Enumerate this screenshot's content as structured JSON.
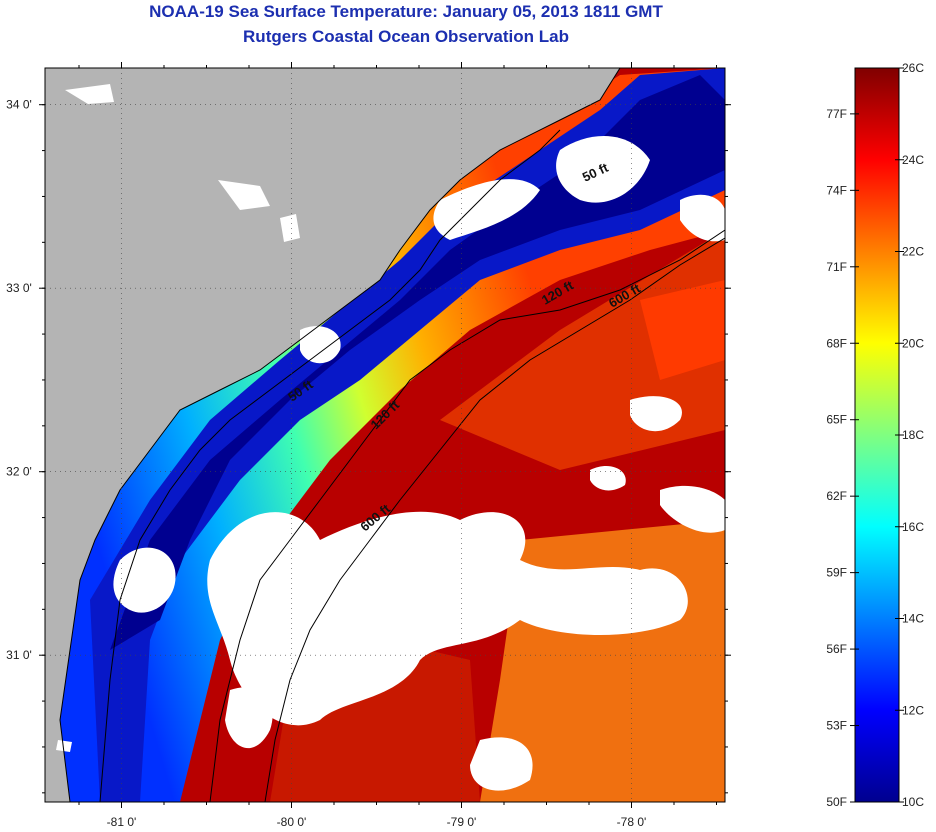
{
  "title": "NOAA-19 Sea Surface Temperature:  January 05, 2013 1811 GMT",
  "subtitle": "Rutgers Coastal Ocean Observation Lab",
  "map": {
    "lon_range": [
      -81.45,
      -77.45
    ],
    "lat_range": [
      30.2,
      34.2
    ],
    "x_ticks": [
      {
        "value": -81,
        "label": "-81 0'"
      },
      {
        "value": -80,
        "label": "-80 0'"
      },
      {
        "value": -79,
        "label": "-79 0'"
      },
      {
        "value": -78,
        "label": "-78 0'"
      }
    ],
    "y_ticks": [
      {
        "value": 34,
        "label": "34 0'"
      },
      {
        "value": 33,
        "label": "33 0'"
      },
      {
        "value": 32,
        "label": "32 0'"
      },
      {
        "value": 31,
        "label": "31 0'"
      }
    ],
    "grid": "dotted",
    "land_color": "#b4b4b4",
    "cloud_color": "#ffffff",
    "contour_labels": [
      "50 ft",
      "120 ft",
      "600 ft",
      "50 ft",
      "120 ft",
      "600 ft"
    ]
  },
  "colorbar": {
    "range_c": [
      10,
      26
    ],
    "celsius_labels": [
      "26C",
      "24C",
      "22C",
      "20C",
      "18C",
      "16C",
      "14C",
      "12C",
      "10C"
    ],
    "fahrenheit_labels": [
      "77F",
      "74F",
      "71F",
      "68F",
      "65F",
      "62F",
      "59F",
      "56F",
      "53F",
      "50F"
    ],
    "colors": [
      "#00008f",
      "#0000ff",
      "#0080ff",
      "#00ffff",
      "#80ff80",
      "#ffff00",
      "#ff8000",
      "#ff0000",
      "#800000"
    ]
  }
}
